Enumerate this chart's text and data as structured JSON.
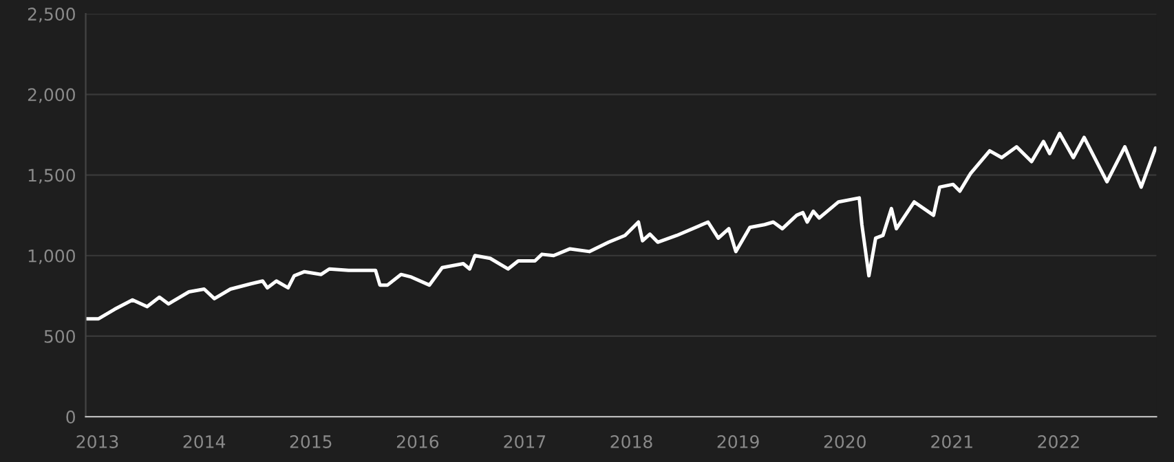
{
  "chart_data": {
    "type": "line",
    "x": [
      "2012-11-25",
      "2013-01-05",
      "2013-03-01",
      "2013-05-01",
      "2013-06-20",
      "2013-08-01",
      "2013-09-01",
      "2013-11-10",
      "2014-01-01",
      "2014-02-05",
      "2014-04-01",
      "2014-06-10",
      "2014-07-20",
      "2014-08-05",
      "2014-09-05",
      "2014-10-15",
      "2014-11-05",
      "2014-12-10",
      "2015-02-05",
      "2015-03-05",
      "2015-05-10",
      "2015-08-10",
      "2015-08-25",
      "2015-09-20",
      "2015-11-05",
      "2015-12-10",
      "2016-02-10",
      "2016-03-25",
      "2016-06-05",
      "2016-06-27",
      "2016-07-15",
      "2016-09-05",
      "2016-11-05",
      "2016-12-10",
      "2017-02-05",
      "2017-03-01",
      "2017-04-10",
      "2017-06-05",
      "2017-08-10",
      "2017-10-15",
      "2017-12-10",
      "2018-01-25",
      "2018-02-08",
      "2018-03-05",
      "2018-04-01",
      "2018-06-05",
      "2018-09-20",
      "2018-10-25",
      "2018-11-30",
      "2018-12-24",
      "2019-02-10",
      "2019-04-01",
      "2019-05-01",
      "2019-06-01",
      "2019-07-20",
      "2019-08-10",
      "2019-08-25",
      "2019-09-15",
      "2019-10-05",
      "2019-12-10",
      "2020-02-19",
      "2020-02-28",
      "2020-03-23",
      "2020-04-15",
      "2020-05-10",
      "2020-06-08",
      "2020-06-25",
      "2020-08-25",
      "2020-10-30",
      "2020-11-20",
      "2021-01-05",
      "2021-01-28",
      "2021-03-05",
      "2021-05-10",
      "2021-06-20",
      "2021-08-10",
      "2021-09-30",
      "2021-11-10",
      "2021-12-01",
      "2022-01-04",
      "2022-02-20",
      "2022-03-29",
      "2022-06-15",
      "2022-08-15",
      "2022-10-10",
      "2022-11-28"
    ],
    "series": [
      {
        "color": "#ffffff",
        "values": [
          608,
          608,
          667,
          725,
          683,
          742,
          700,
          775,
          792,
          733,
          792,
          825,
          842,
          800,
          842,
          800,
          875,
          900,
          883,
          917,
          908,
          908,
          817,
          817,
          883,
          867,
          817,
          925,
          950,
          917,
          1000,
          983,
          917,
          967,
          967,
          1008,
          1000,
          1042,
          1025,
          1083,
          1125,
          1208,
          1092,
          1133,
          1083,
          1125,
          1208,
          1108,
          1167,
          1025,
          1175,
          1192,
          1208,
          1167,
          1250,
          1267,
          1208,
          1275,
          1233,
          1333,
          1358,
          1192,
          875,
          1108,
          1125,
          1292,
          1167,
          1333,
          1250,
          1425,
          1442,
          1400,
          1508,
          1650,
          1608,
          1675,
          1583,
          1708,
          1633,
          1758,
          1608,
          1733,
          1458,
          1675,
          1425,
          1667
        ]
      }
    ],
    "xlim": [
      "2012-11-22",
      "2022-12-01"
    ],
    "xticks": [
      {
        "value": "2013-01-01",
        "label": "2013"
      },
      {
        "value": "2014-01-01",
        "label": "2014"
      },
      {
        "value": "2015-01-01",
        "label": "2015"
      },
      {
        "value": "2016-01-01",
        "label": "2016"
      },
      {
        "value": "2017-01-01",
        "label": "2017"
      },
      {
        "value": "2018-01-01",
        "label": "2018"
      },
      {
        "value": "2019-01-01",
        "label": "2019"
      },
      {
        "value": "2020-01-01",
        "label": "2020"
      },
      {
        "value": "2021-01-01",
        "label": "2021"
      },
      {
        "value": "2022-01-01",
        "label": "2022"
      }
    ],
    "ylim": [
      0,
      2500
    ],
    "yticks": [
      0,
      500,
      {
        "value": 1000,
        "label": "1,000"
      },
      {
        "value": 1500,
        "label": "1,500"
      },
      {
        "value": 2000,
        "label": "2,000"
      },
      {
        "value": 2500,
        "label": "2,500"
      }
    ],
    "grid": "y",
    "marker": "none",
    "line_style": "solid",
    "legend": false
  }
}
